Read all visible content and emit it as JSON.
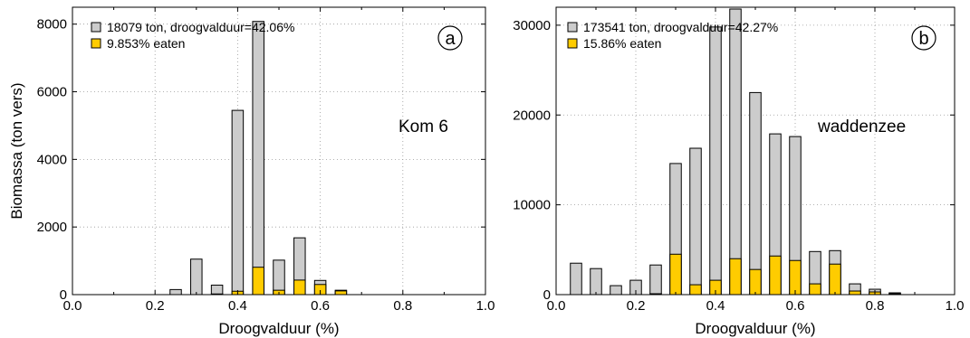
{
  "colors": {
    "total": "#cccccc",
    "eaten": "#ffcc00",
    "stroke": "#000000",
    "grid": "#999999"
  },
  "chart_data": [
    {
      "type": "bar",
      "panel_label": "a",
      "annotation": "Kom 6",
      "xlabel": "Droogvalduur (%)",
      "ylabel": "Biomassa (ton vers)",
      "xlim": [
        0.0,
        1.0
      ],
      "ylim": [
        0,
        8500
      ],
      "xticks": [
        "0.0",
        "0.2",
        "0.4",
        "0.6",
        "0.8",
        "1.0"
      ],
      "yticks": [
        "0",
        "2000",
        "4000",
        "6000",
        "8000"
      ],
      "grid": true,
      "legend_position": "top-left",
      "x": [
        0.25,
        0.3,
        0.35,
        0.4,
        0.45,
        0.5,
        0.55,
        0.6,
        0.65
      ],
      "series": [
        {
          "name": "18079 ton, droogvalduur=42.06%",
          "values": [
            150,
            1050,
            280,
            5450,
            8080,
            1020,
            1680,
            420,
            130
          ]
        },
        {
          "name": "9.853% eaten",
          "values": [
            0,
            0,
            20,
            100,
            810,
            130,
            430,
            300,
            110
          ]
        }
      ]
    },
    {
      "type": "bar",
      "panel_label": "b",
      "annotation": "waddenzee",
      "xlabel": "Droogvalduur (%)",
      "ylabel": "",
      "xlim": [
        0.0,
        1.0
      ],
      "ylim": [
        0,
        32000
      ],
      "xticks": [
        "0.0",
        "0.2",
        "0.4",
        "0.6",
        "0.8",
        "1.0"
      ],
      "yticks": [
        "0",
        "10000",
        "20000",
        "30000"
      ],
      "grid": true,
      "legend_position": "top-left",
      "x": [
        0.05,
        0.1,
        0.15,
        0.2,
        0.25,
        0.3,
        0.35,
        0.4,
        0.45,
        0.5,
        0.55,
        0.6,
        0.65,
        0.7,
        0.75,
        0.8,
        0.85
      ],
      "series": [
        {
          "name": "173541 ton, droogvalduur=42.27%",
          "values": [
            3500,
            2900,
            1000,
            1600,
            3300,
            14600,
            16300,
            29800,
            31800,
            22500,
            17900,
            17600,
            4800,
            4900,
            1200,
            600,
            200
          ]
        },
        {
          "name": "15.86% eaten",
          "values": [
            0,
            0,
            0,
            0,
            100,
            4500,
            1100,
            1600,
            4000,
            2800,
            4300,
            3800,
            1200,
            3400,
            400,
            300,
            100
          ]
        }
      ]
    }
  ]
}
